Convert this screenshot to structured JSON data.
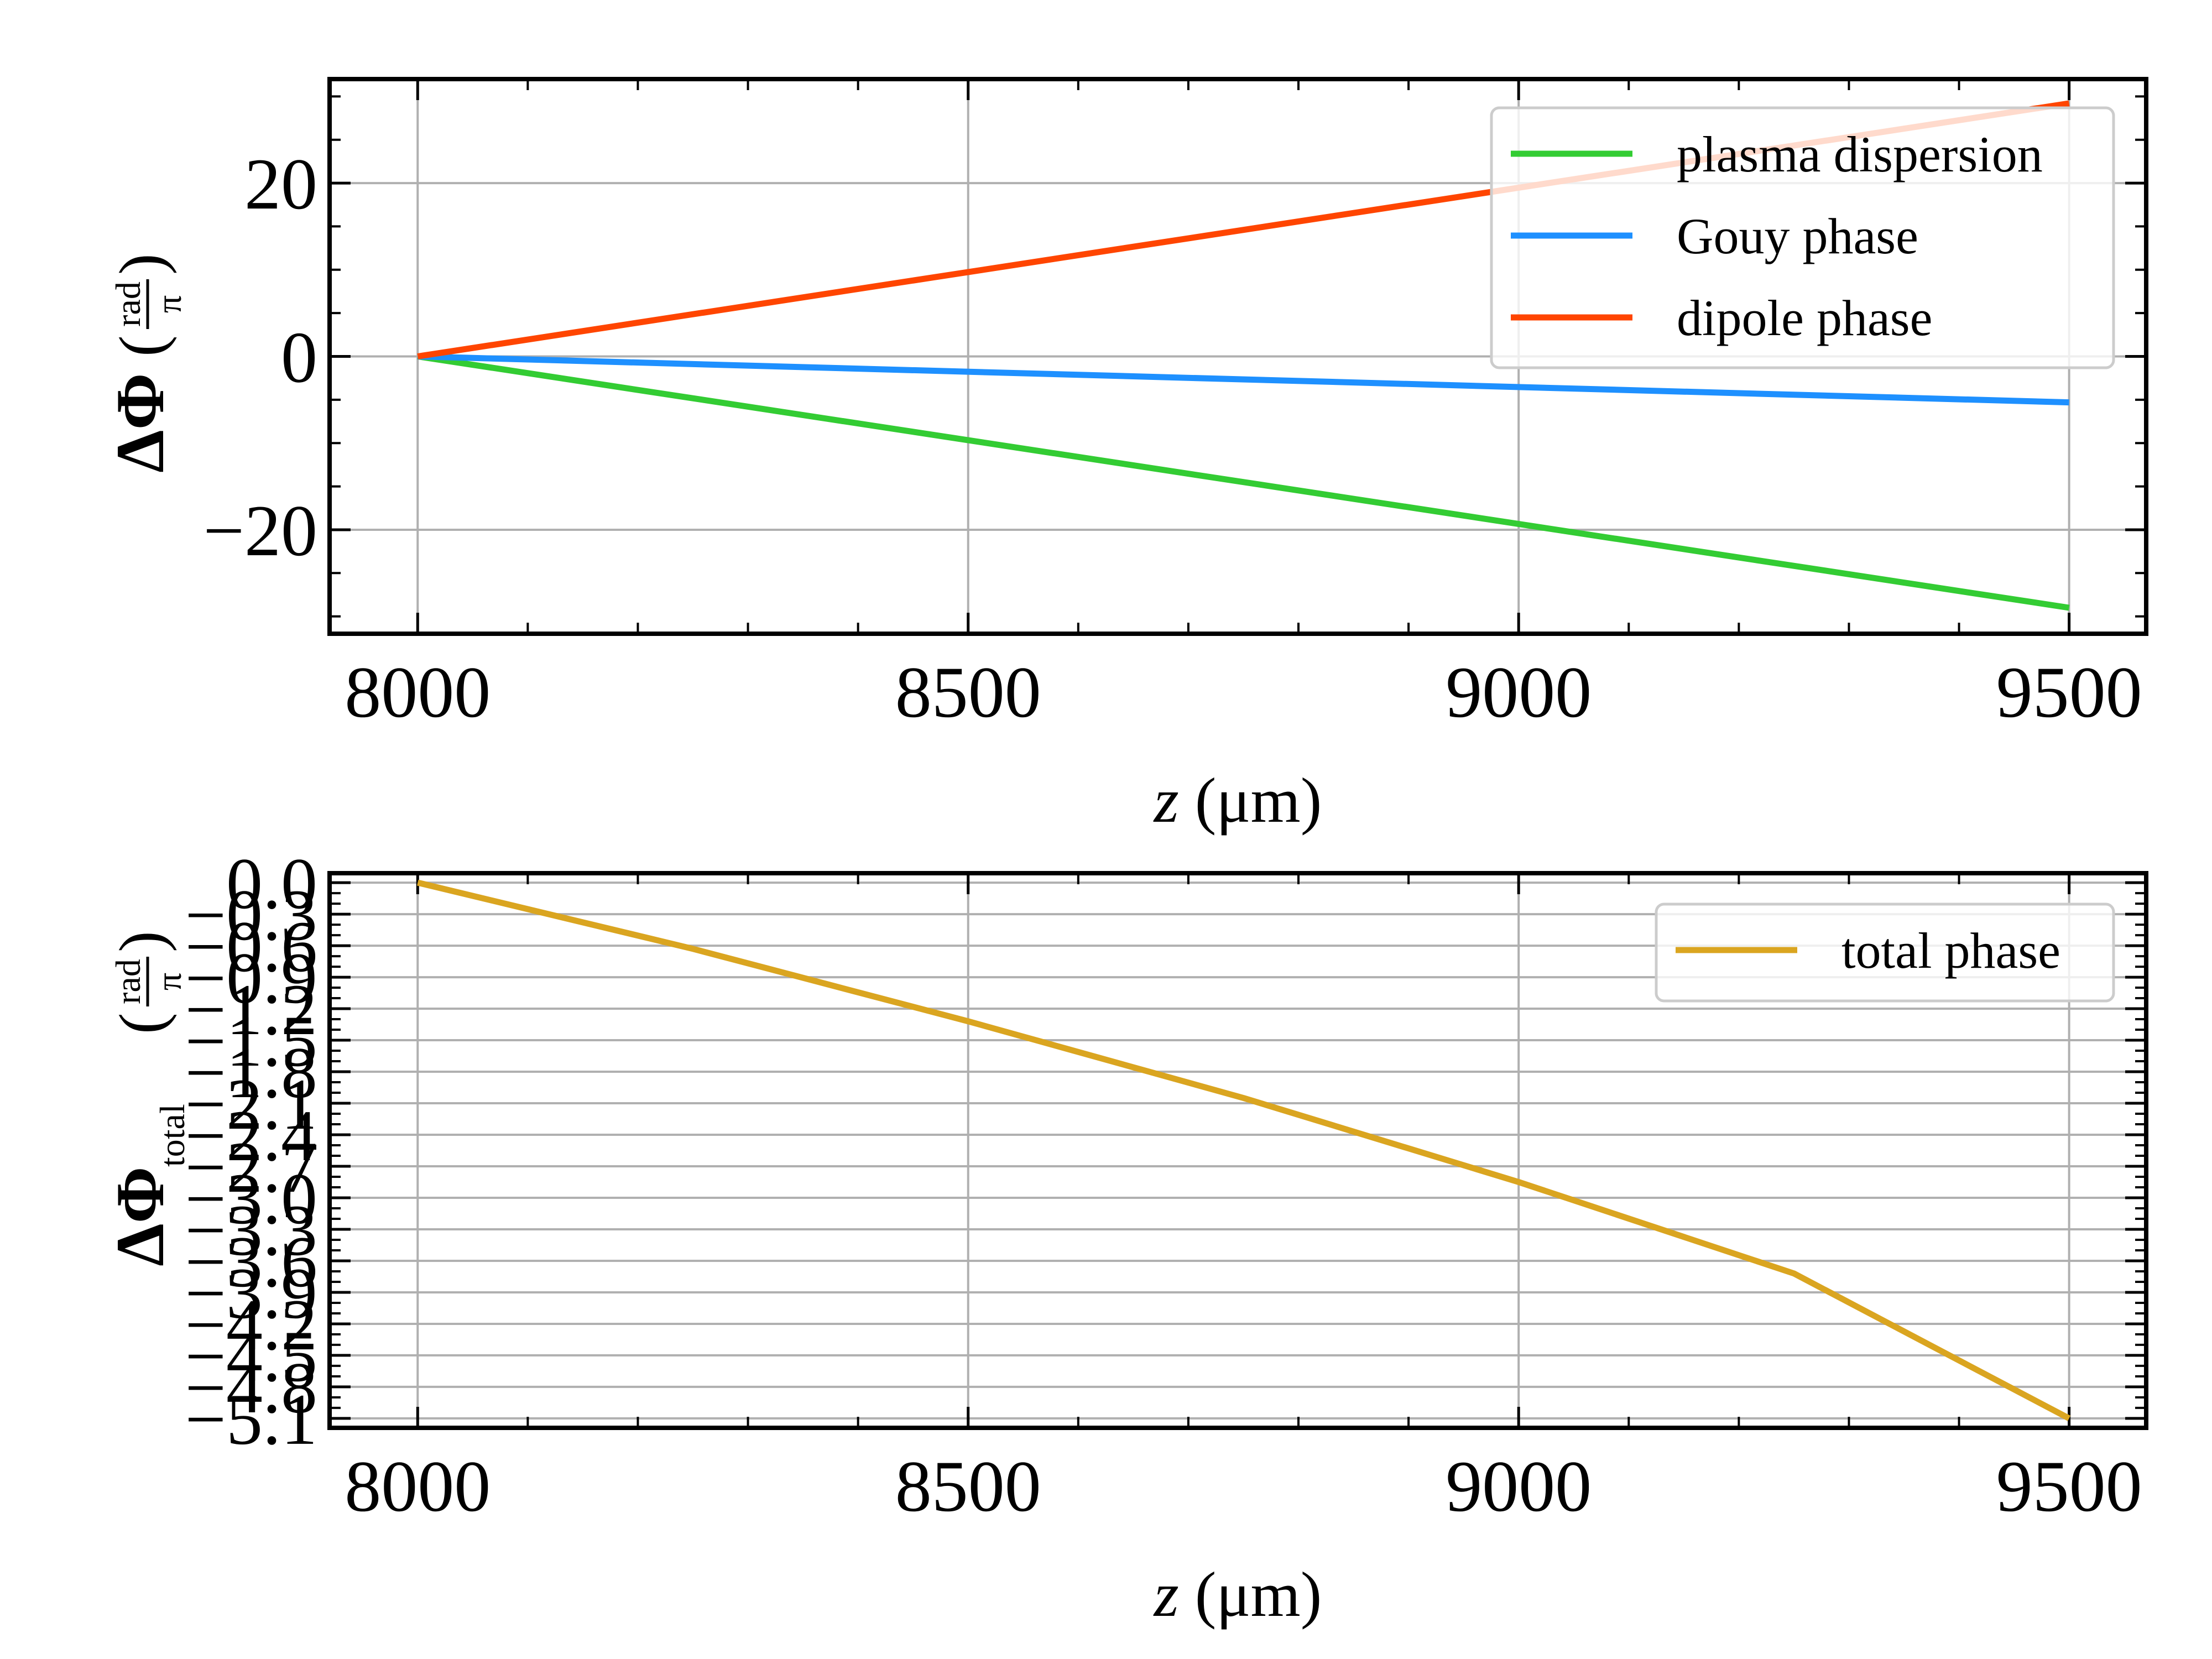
{
  "chart_data": [
    {
      "type": "line",
      "xlabel_var": "z",
      "xlabel_unit": "(μm)",
      "ylabel_main": "ΔΦ",
      "ylabel_frac_num": "rad",
      "ylabel_frac_den": "π",
      "xlim": [
        7920,
        9570
      ],
      "ylim": [
        -32,
        32
      ],
      "x_ticks": [
        8000,
        8500,
        9000,
        9500
      ],
      "y_ticks": [
        -20,
        0,
        20
      ],
      "y_tick_labels": [
        "−20",
        "0",
        "20"
      ],
      "grid": true,
      "legend_position": "top-right",
      "series": [
        {
          "name": "plasma dispersion",
          "color": "#33cc33",
          "x": [
            8000,
            9500
          ],
          "y": [
            0,
            -29
          ]
        },
        {
          "name": "Gouy phase",
          "color": "#1e90ff",
          "x": [
            8000,
            9500
          ],
          "y": [
            0,
            -5.3
          ]
        },
        {
          "name": "dipole phase",
          "color": "#ff4500",
          "x": [
            8000,
            9500
          ],
          "y": [
            0,
            29.2
          ]
        }
      ]
    },
    {
      "type": "line",
      "xlabel_var": "z",
      "xlabel_unit": "(μm)",
      "ylabel_main": "ΔΦ",
      "ylabel_sub": "total",
      "ylabel_frac_num": "rad",
      "ylabel_frac_den": "π",
      "xlim": [
        7920,
        9570
      ],
      "ylim": [
        -5.19,
        0.09
      ],
      "x_ticks": [
        8000,
        8500,
        9000,
        9500
      ],
      "y_ticks": [
        0,
        -0.3,
        -0.6,
        -0.9,
        -1.2,
        -1.5,
        -1.8,
        -2.1,
        -2.4,
        -2.7,
        -3.0,
        -3.3,
        -3.6,
        -3.9,
        -4.2,
        -4.5,
        -4.8,
        -5.1
      ],
      "y_tick_labels": [
        "0.0",
        "−0.3",
        "−0.6",
        "−0.9",
        "−1.2",
        "−1.5",
        "−1.8",
        "−2.1",
        "−2.4",
        "−2.7",
        "−3.0",
        "−3.3",
        "−3.6",
        "−3.9",
        "−4.2",
        "−4.5",
        "−4.8",
        "−5.1"
      ],
      "grid": true,
      "legend_position": "top-right",
      "series": [
        {
          "name": "total phase",
          "color": "#daa520",
          "x": [
            8000,
            8250,
            8500,
            8750,
            9000,
            9250,
            9500
          ],
          "y": [
            0,
            -0.63,
            -1.32,
            -2.05,
            -2.85,
            -3.72,
            -5.1
          ]
        }
      ]
    }
  ]
}
